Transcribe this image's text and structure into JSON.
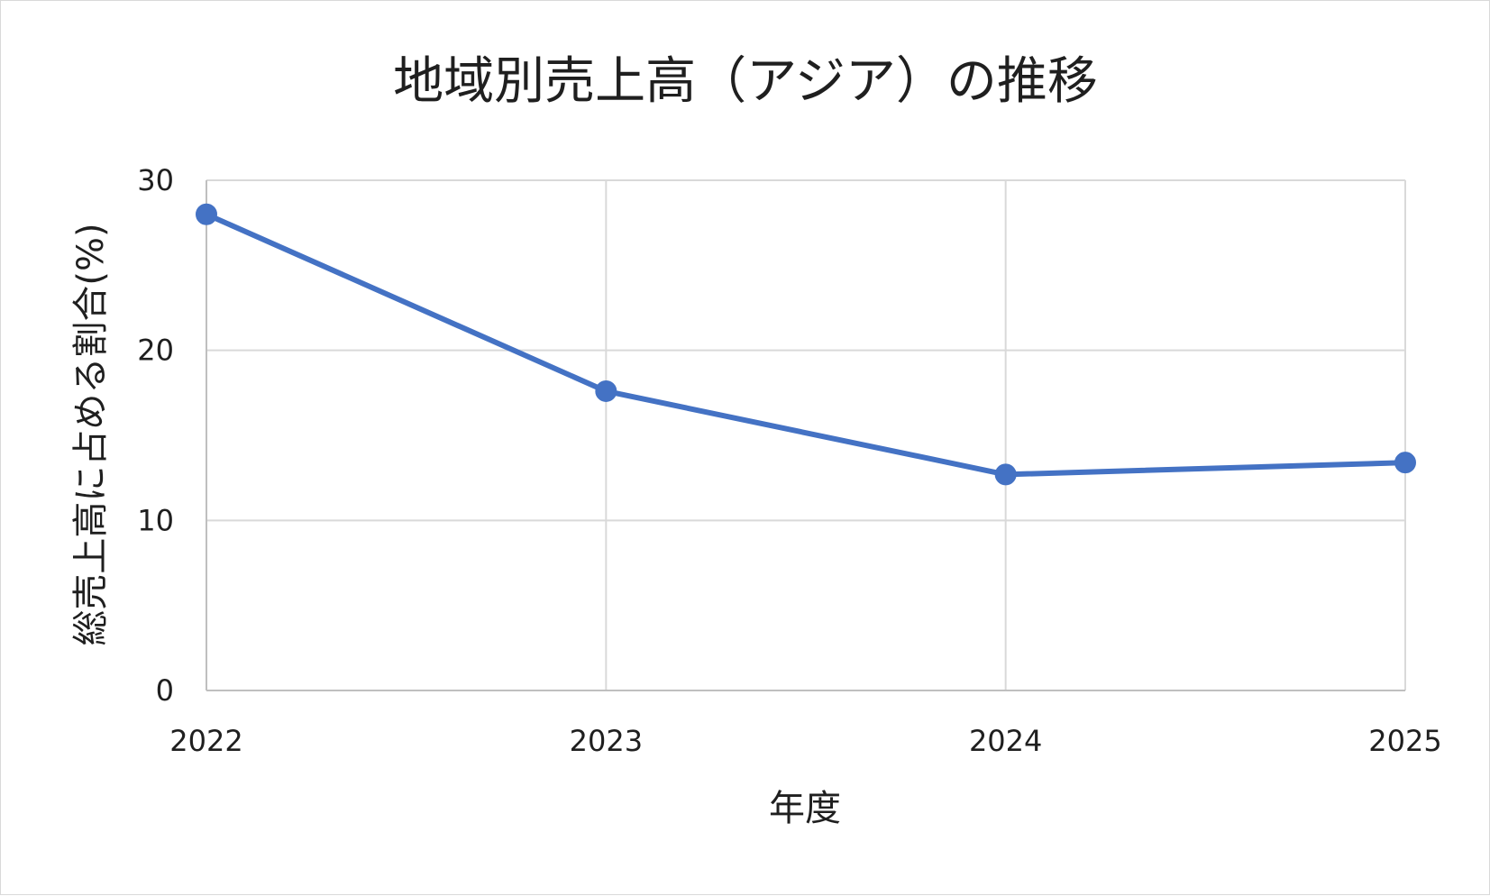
{
  "chart_data": {
    "type": "line",
    "title": "地域別売上高（アジア）の推移",
    "xlabel": "年度",
    "ylabel": "総売上高に占める割合(%)",
    "categories": [
      "2022",
      "2023",
      "2024",
      "2025"
    ],
    "series": [
      {
        "values": [
          28.0,
          17.6,
          12.7,
          13.4
        ]
      }
    ],
    "ylim": [
      0,
      30
    ],
    "yticks": [
      "0",
      "10",
      "20",
      "30"
    ],
    "grid": true,
    "legend": "none",
    "colors": {
      "line": "#4472C4",
      "grid": "#d9d9d9",
      "axis": "#bfbfbf"
    }
  }
}
